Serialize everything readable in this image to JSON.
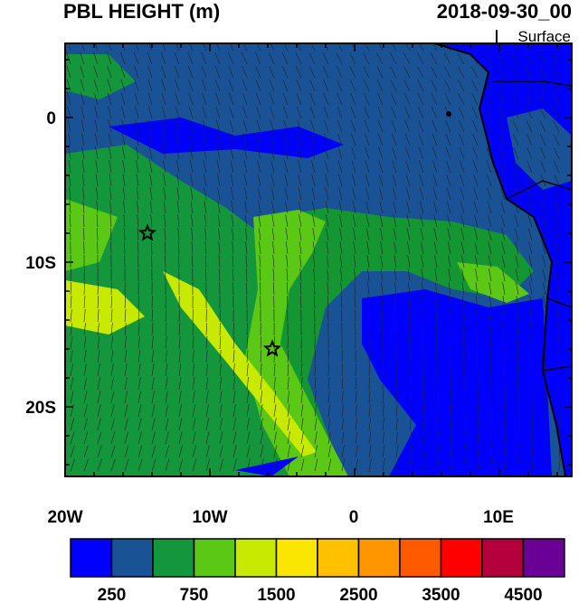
{
  "header": {
    "title": "PBL HEIGHT (m)",
    "time": "2018-09-30_00",
    "level": "Surface"
  },
  "map": {
    "lat_labels": [
      "0",
      "10S",
      "20S"
    ],
    "lon_labels": [
      "20W",
      "10W",
      "0",
      "10E"
    ]
  },
  "colorbar": {
    "labels": [
      "250",
      "750",
      "1500",
      "2500",
      "3500",
      "4500"
    ]
  }
}
